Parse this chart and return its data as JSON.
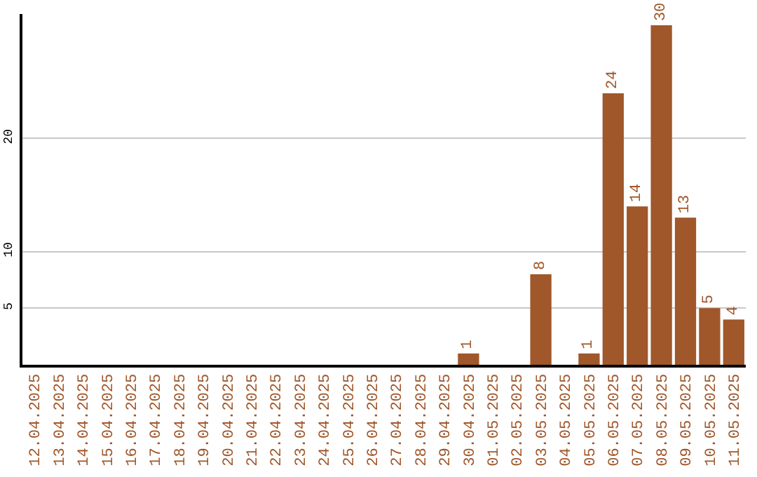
{
  "chart_data": {
    "type": "bar",
    "categories": [
      "12.04.2025",
      "13.04.2025",
      "14.04.2025",
      "15.04.2025",
      "16.04.2025",
      "17.04.2025",
      "18.04.2025",
      "19.04.2025",
      "20.04.2025",
      "21.04.2025",
      "22.04.2025",
      "23.04.2025",
      "24.04.2025",
      "25.04.2025",
      "26.04.2025",
      "27.04.2025",
      "28.04.2025",
      "29.04.2025",
      "30.04.2025",
      "01.05.2025",
      "02.05.2025",
      "03.05.2025",
      "04.05.2025",
      "05.05.2025",
      "06.05.2025",
      "07.05.2025",
      "08.05.2025",
      "09.05.2025",
      "10.05.2025",
      "11.05.2025"
    ],
    "values": [
      0,
      0,
      0,
      0,
      0,
      0,
      0,
      0,
      0,
      0,
      0,
      0,
      0,
      0,
      0,
      0,
      0,
      0,
      1,
      0,
      0,
      8,
      0,
      1,
      24,
      14,
      30,
      13,
      5,
      4
    ],
    "value_labels": [
      null,
      null,
      null,
      null,
      null,
      null,
      null,
      null,
      null,
      null,
      null,
      null,
      null,
      null,
      null,
      null,
      null,
      null,
      "1",
      null,
      null,
      "8",
      null,
      "1",
      "24",
      "14",
      "30",
      "13",
      "5",
      "4"
    ],
    "color": "#a0572a",
    "ylim": [
      0,
      31
    ],
    "yticks": [
      5,
      10,
      20
    ],
    "grid": "y",
    "legend": false
  }
}
